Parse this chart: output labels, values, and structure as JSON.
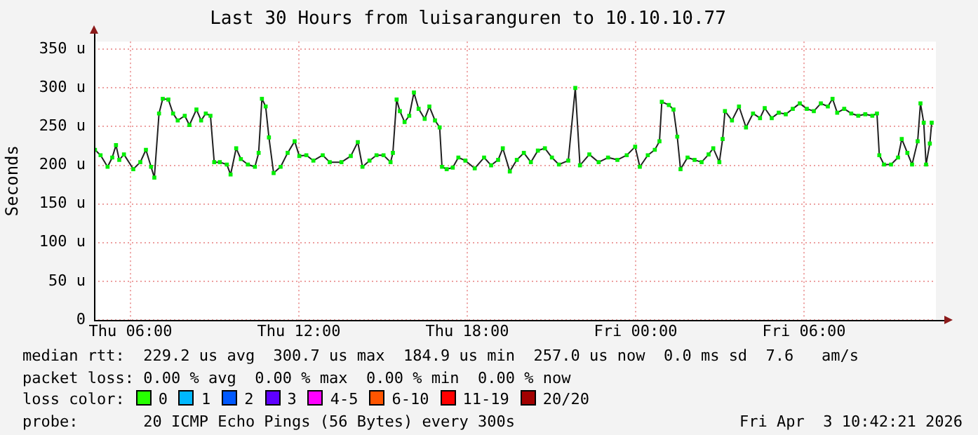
{
  "chart_data": {
    "type": "line",
    "title": "Last 30 Hours from luisaranguren to 10.10.10.77",
    "ylabel": "Seconds",
    "xlim": [
      "2026-04-02T04:42",
      "2026-04-03T10:42"
    ],
    "xticks": [
      {
        "value": "2026-04-02T06:00",
        "label": "Thu 06:00"
      },
      {
        "value": "2026-04-02T12:00",
        "label": "Thu 12:00"
      },
      {
        "value": "2026-04-02T18:00",
        "label": "Thu 18:00"
      },
      {
        "value": "2026-04-03T00:00",
        "label": "Fri 00:00"
      },
      {
        "value": "2026-04-03T06:00",
        "label": "Fri 06:00"
      }
    ],
    "ylim": [
      0,
      360
    ],
    "yticks": [
      {
        "value": 0,
        "label": "0"
      },
      {
        "value": 50,
        "label": "50 u"
      },
      {
        "value": 100,
        "label": "100 u"
      },
      {
        "value": 150,
        "label": "150 u"
      },
      {
        "value": 200,
        "label": "200 u"
      },
      {
        "value": 250,
        "label": "250 u"
      },
      {
        "value": 300,
        "label": "300 u"
      },
      {
        "value": 350,
        "label": "350 u"
      }
    ],
    "grid": true,
    "legend": false,
    "marker": "square",
    "line_style": "solid",
    "series": [
      {
        "color": "#00ee00",
        "x": [
          "2026-04-02T04:44",
          "2026-04-02T04:56",
          "2026-04-02T05:11",
          "2026-04-02T05:21",
          "2026-04-02T05:29",
          "2026-04-02T05:36",
          "2026-04-02T05:46",
          "2026-04-02T06:06",
          "2026-04-02T06:21",
          "2026-04-02T06:33",
          "2026-04-02T06:44",
          "2026-04-02T06:51",
          "2026-04-02T07:01",
          "2026-04-02T07:09",
          "2026-04-02T07:21",
          "2026-04-02T07:31",
          "2026-04-02T07:41",
          "2026-04-02T07:56",
          "2026-04-02T08:06",
          "2026-04-02T08:21",
          "2026-04-02T08:31",
          "2026-04-02T08:41",
          "2026-04-02T08:51",
          "2026-04-02T08:59",
          "2026-04-02T09:11",
          "2026-04-02T09:26",
          "2026-04-02T09:34",
          "2026-04-02T09:46",
          "2026-04-02T09:56",
          "2026-04-02T10:11",
          "2026-04-02T10:26",
          "2026-04-02T10:34",
          "2026-04-02T10:41",
          "2026-04-02T10:49",
          "2026-04-02T10:56",
          "2026-04-02T11:06",
          "2026-04-02T11:21",
          "2026-04-02T11:36",
          "2026-04-02T11:51",
          "2026-04-02T12:01",
          "2026-04-02T12:16",
          "2026-04-02T12:31",
          "2026-04-02T12:51",
          "2026-04-02T13:06",
          "2026-04-02T13:31",
          "2026-04-02T13:51",
          "2026-04-02T14:06",
          "2026-04-02T14:16",
          "2026-04-02T14:31",
          "2026-04-02T14:46",
          "2026-04-02T15:01",
          "2026-04-02T15:16",
          "2026-04-02T15:21",
          "2026-04-02T15:29",
          "2026-04-02T15:36",
          "2026-04-02T15:46",
          "2026-04-02T15:56",
          "2026-04-02T16:06",
          "2026-04-02T16:16",
          "2026-04-02T16:29",
          "2026-04-02T16:39",
          "2026-04-02T16:51",
          "2026-04-02T17:01",
          "2026-04-02T17:06",
          "2026-04-02T17:16",
          "2026-04-02T17:29",
          "2026-04-02T17:41",
          "2026-04-02T17:56",
          "2026-04-02T18:16",
          "2026-04-02T18:36",
          "2026-04-02T18:51",
          "2026-04-02T19:06",
          "2026-04-02T19:16",
          "2026-04-02T19:31",
          "2026-04-02T19:46",
          "2026-04-02T20:01",
          "2026-04-02T20:16",
          "2026-04-02T20:31",
          "2026-04-02T20:46",
          "2026-04-02T21:01",
          "2026-04-02T21:16",
          "2026-04-02T21:36",
          "2026-04-02T21:51",
          "2026-04-02T22:01",
          "2026-04-02T22:21",
          "2026-04-02T22:41",
          "2026-04-02T23:01",
          "2026-04-02T23:21",
          "2026-04-02T23:41",
          "2026-04-02T23:59",
          "2026-04-03T00:09",
          "2026-04-03T00:26",
          "2026-04-03T00:41",
          "2026-04-03T00:51",
          "2026-04-03T00:56",
          "2026-04-03T01:11",
          "2026-04-03T01:21",
          "2026-04-03T01:29",
          "2026-04-03T01:36",
          "2026-04-03T01:51",
          "2026-04-03T02:06",
          "2026-04-03T02:21",
          "2026-04-03T02:36",
          "2026-04-03T02:46",
          "2026-04-03T02:59",
          "2026-04-03T03:06",
          "2026-04-03T03:11",
          "2026-04-03T03:26",
          "2026-04-03T03:41",
          "2026-04-03T03:56",
          "2026-04-03T04:11",
          "2026-04-03T04:26",
          "2026-04-03T04:36",
          "2026-04-03T04:51",
          "2026-04-03T05:06",
          "2026-04-03T05:21",
          "2026-04-03T05:36",
          "2026-04-03T05:51",
          "2026-04-03T06:06",
          "2026-04-03T06:21",
          "2026-04-03T06:36",
          "2026-04-03T06:51",
          "2026-04-03T07:01",
          "2026-04-03T07:11",
          "2026-04-03T07:26",
          "2026-04-03T07:41",
          "2026-04-03T07:56",
          "2026-04-03T08:11",
          "2026-04-03T08:26",
          "2026-04-03T08:36",
          "2026-04-03T08:41",
          "2026-04-03T08:51",
          "2026-04-03T09:06",
          "2026-04-03T09:21",
          "2026-04-03T09:29",
          "2026-04-03T09:41",
          "2026-04-03T09:51",
          "2026-04-03T10:03",
          "2026-04-03T10:09",
          "2026-04-03T10:16",
          "2026-04-03T10:21",
          "2026-04-03T10:29",
          "2026-04-03T10:33"
        ],
        "values": [
          220,
          213,
          198,
          210,
          226,
          207,
          214,
          195,
          204,
          220,
          198,
          184,
          267,
          286,
          285,
          267,
          258,
          264,
          252,
          272,
          258,
          267,
          264,
          204,
          204,
          201,
          188,
          222,
          208,
          201,
          198,
          216,
          286,
          276,
          236,
          190,
          198,
          216,
          231,
          212,
          213,
          206,
          213,
          204,
          204,
          212,
          230,
          198,
          206,
          213,
          213,
          204,
          216,
          285,
          270,
          256,
          264,
          294,
          273,
          260,
          276,
          258,
          249,
          198,
          195,
          197,
          210,
          206,
          196,
          210,
          200,
          207,
          222,
          192,
          207,
          216,
          204,
          219,
          222,
          210,
          201,
          206,
          300,
          200,
          214,
          204,
          210,
          207,
          213,
          224,
          198,
          213,
          220,
          231,
          282,
          278,
          272,
          237,
          195,
          210,
          207,
          204,
          214,
          222,
          204,
          234,
          270,
          258,
          276,
          249,
          267,
          261,
          274,
          261,
          268,
          266,
          273,
          280,
          273,
          270,
          280,
          276,
          286,
          268,
          273,
          267,
          264,
          266,
          264,
          267,
          213,
          201,
          201,
          210,
          234,
          216,
          201,
          231,
          280,
          255,
          201,
          228,
          255
        ]
      }
    ],
    "annotations": [
      "median rtt:  229.2 us avg  300.7 us max  184.9 us min  257.0 us now  0.0 ms sd  7.6   am/s",
      "packet loss: 0.00 % avg  0.00 % max  0.00 % min  0.00 % now",
      "loss color:",
      "0",
      "1",
      "2",
      "3",
      "4-5",
      "6-10",
      "11-19",
      "20/20",
      "probe:       20 ICMP Echo Pings (56 Bytes) every 300s",
      "Fri Apr  3 10:42:21 2026"
    ]
  }
}
